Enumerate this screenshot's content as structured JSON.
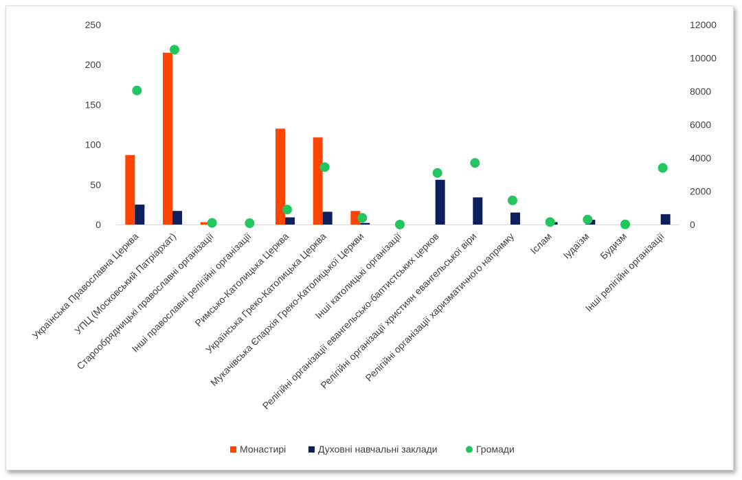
{
  "chart_data": {
    "type": "bar",
    "categories": [
      "Українська Православна Церква",
      "УПЦ (Московський Патріархат)",
      "Старообрядницькі православні організації",
      "Інші православні релігійні організації",
      "Римсько-Католицька Церква",
      "Українська Греко-Католицька Церква",
      "Мукачівська Єпархія Греко-Католицької Церкви",
      "Інші католицькі організації",
      "Релігійні організації евангельсько-баптистських церков",
      "Релігійні організації християн евангельської віри",
      "Релігійні організації харизматичного напрямку",
      "Іслам",
      "Іудаїзм",
      "Будизм",
      "Інші релігійні організації"
    ],
    "series": [
      {
        "name": "Монастирі",
        "type": "bar",
        "axis": "left",
        "color": "#ff4500",
        "values": [
          87,
          215,
          3,
          0,
          120,
          109,
          17,
          0,
          0,
          0,
          0,
          0,
          0,
          0,
          0
        ]
      },
      {
        "name": "Духовні навчальні заклади",
        "type": "bar",
        "axis": "left",
        "color": "#0d1f5c",
        "values": [
          25,
          17,
          0,
          0,
          9,
          16,
          2,
          0,
          56,
          34,
          15,
          3,
          6,
          0,
          13
        ]
      },
      {
        "name": "Громади",
        "type": "scatter",
        "axis": "right",
        "color": "#22c55e",
        "values": [
          8050,
          10500,
          100,
          80,
          900,
          3450,
          400,
          0,
          3100,
          3700,
          1450,
          150,
          300,
          10,
          3400
        ]
      }
    ],
    "y_left": {
      "min": 0,
      "max": 250,
      "ticks": [
        "0",
        "50",
        "100",
        "150",
        "200",
        "250"
      ]
    },
    "y_right": {
      "min": 0,
      "max": 12000,
      "ticks": [
        "0",
        "2000",
        "4000",
        "6000",
        "8000",
        "10000",
        "12000"
      ]
    },
    "grid": false,
    "legend_position": "bottom"
  }
}
